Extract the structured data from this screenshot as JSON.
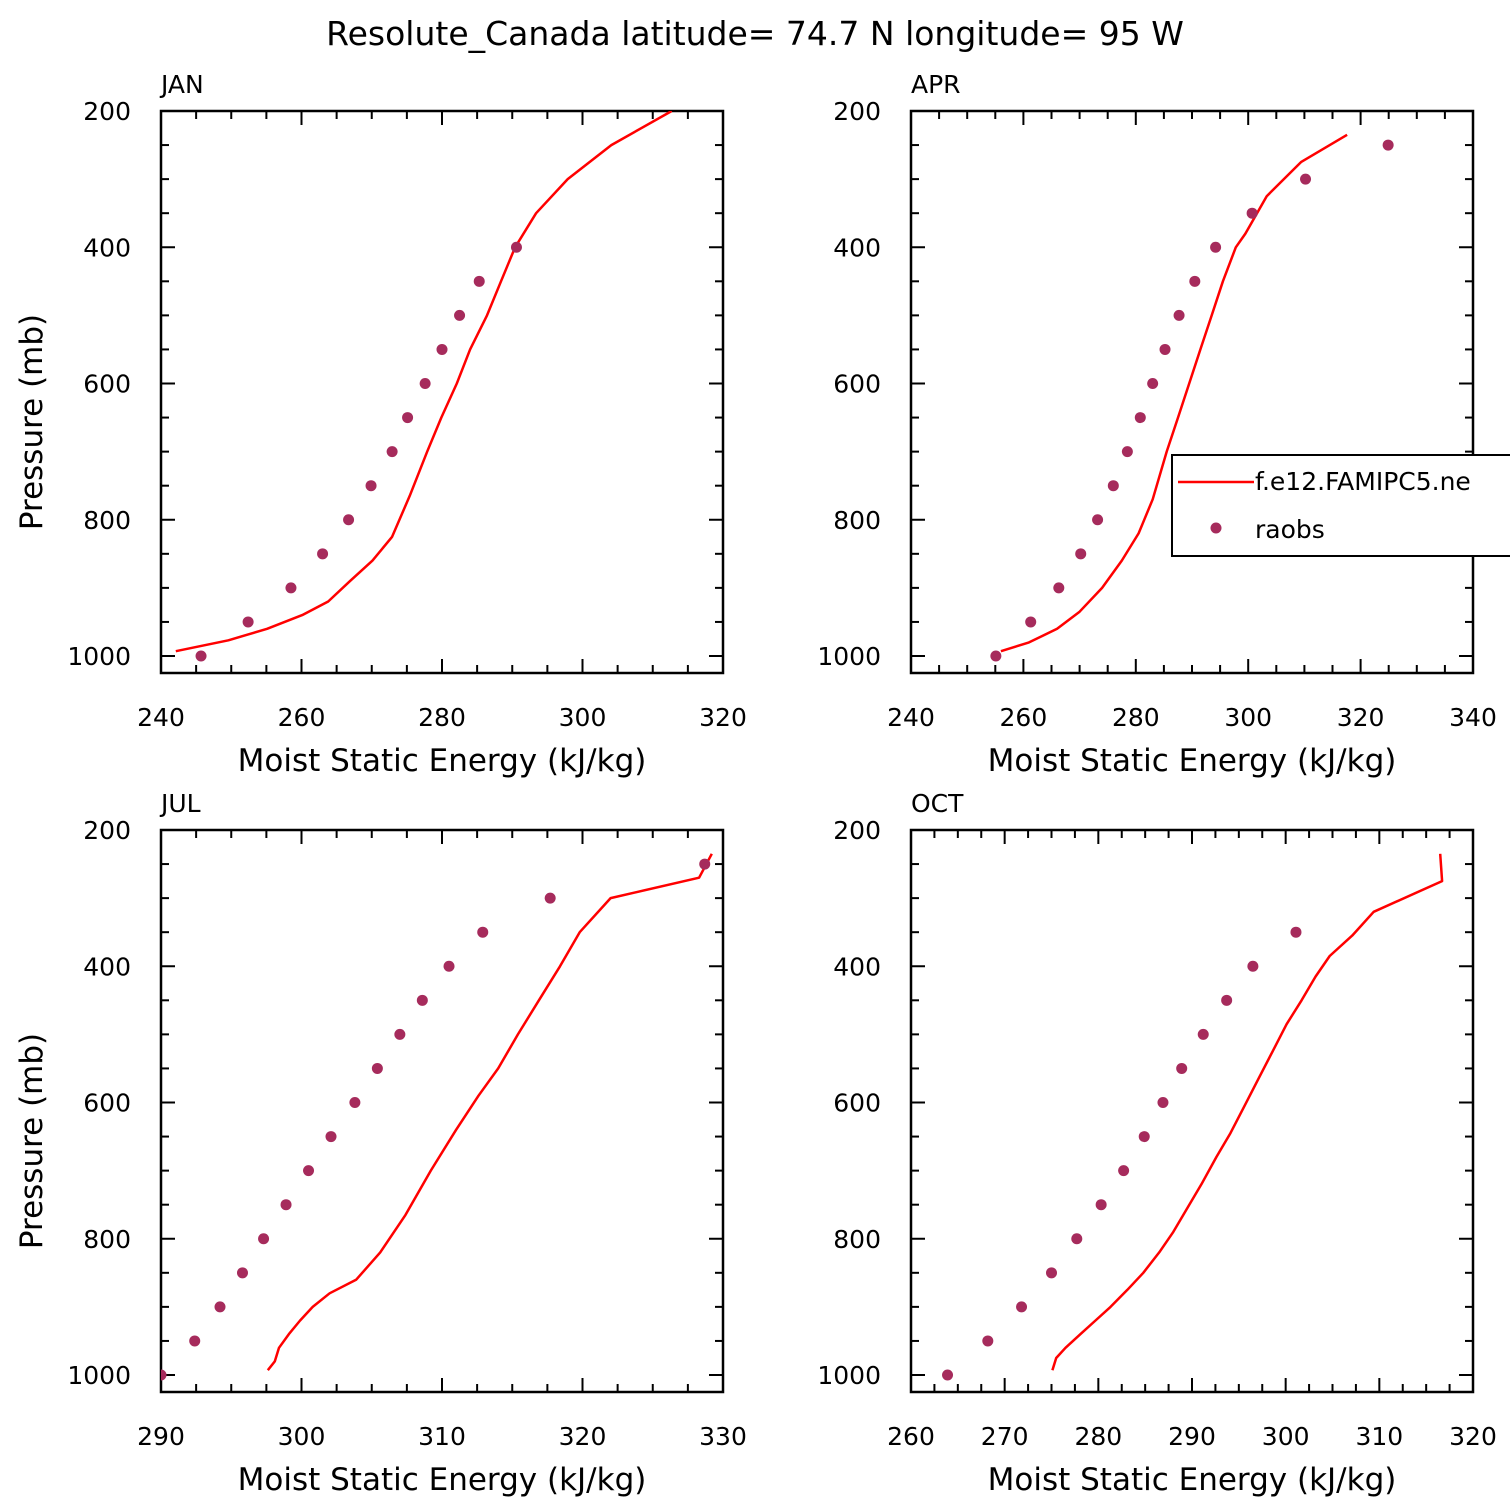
{
  "title": "Resolute_Canada  latitude= 74.7 N longitude= 95 W",
  "colors": {
    "model": "#ff0000",
    "obs": "#a62b5c",
    "axis": "#000000"
  },
  "legend": {
    "model_label": "f.e12.FAMIPC5.ne",
    "obs_label": "raobs",
    "placement": "APR panel, right"
  },
  "chart_data": [
    {
      "type": "line",
      "panel": "JAN",
      "xlabel": "Moist Static Energy (kJ/kg)",
      "ylabel": "Pressure (mb)",
      "xlim": [
        240,
        320
      ],
      "xticks": [
        240,
        260,
        280,
        300,
        320
      ],
      "ylim": [
        1000,
        200
      ],
      "yticks": [
        200,
        400,
        600,
        800,
        1000
      ],
      "series": [
        {
          "name": "f.e12.FAMIPC5.ne",
          "kind": "line",
          "points": [
            [
              242.1,
              993
            ],
            [
              249.6,
              977
            ],
            [
              255.1,
              960
            ],
            [
              260.1,
              940
            ],
            [
              263.8,
              920
            ],
            [
              266.9,
              890
            ],
            [
              270.1,
              860
            ],
            [
              272.9,
              825
            ],
            [
              275.4,
              765
            ],
            [
              277.9,
              700
            ],
            [
              279.9,
              650
            ],
            [
              282.1,
              600
            ],
            [
              284.0,
              550
            ],
            [
              286.4,
              500
            ],
            [
              288.4,
              450
            ],
            [
              290.4,
              400
            ],
            [
              293.4,
              350
            ],
            [
              297.9,
              300
            ],
            [
              304.1,
              250
            ],
            [
              312.7,
              200
            ]
          ]
        },
        {
          "name": "raobs",
          "kind": "points",
          "points": [
            [
              245.7,
              1000
            ],
            [
              252.4,
              950
            ],
            [
              258.5,
              900
            ],
            [
              263.0,
              850
            ],
            [
              266.7,
              800
            ],
            [
              269.9,
              750
            ],
            [
              272.9,
              700
            ],
            [
              275.1,
              650
            ],
            [
              277.6,
              600
            ],
            [
              280.0,
              550
            ],
            [
              282.5,
              500
            ],
            [
              285.3,
              450
            ],
            [
              290.6,
              400
            ]
          ]
        }
      ]
    },
    {
      "type": "line",
      "panel": "APR",
      "xlabel": "Moist Static Energy (kJ/kg)",
      "ylabel": "",
      "xlim": [
        240,
        340
      ],
      "xticks": [
        240,
        260,
        280,
        300,
        320,
        340
      ],
      "ylim": [
        1000,
        200
      ],
      "yticks": [
        200,
        400,
        600,
        800,
        1000
      ],
      "series": [
        {
          "name": "f.e12.FAMIPC5.ne",
          "kind": "line",
          "points": [
            [
              256,
              993
            ],
            [
              261,
              980
            ],
            [
              266,
              960
            ],
            [
              270,
              935
            ],
            [
              274,
              900
            ],
            [
              277.5,
              860
            ],
            [
              280.5,
              820
            ],
            [
              283,
              770
            ],
            [
              285.5,
              700
            ],
            [
              287.5,
              650
            ],
            [
              289.5,
              600
            ],
            [
              291.5,
              550
            ],
            [
              293.5,
              500
            ],
            [
              295.5,
              450
            ],
            [
              297.8,
              400
            ],
            [
              299.5,
              380
            ],
            [
              303.3,
              325
            ],
            [
              309.4,
              275
            ],
            [
              317.6,
              235
            ]
          ]
        },
        {
          "name": "raobs",
          "kind": "points",
          "points": [
            [
              255.1,
              1000
            ],
            [
              261.3,
              950
            ],
            [
              266.3,
              900
            ],
            [
              270.2,
              850
            ],
            [
              273.2,
              800
            ],
            [
              276,
              750
            ],
            [
              278.5,
              700
            ],
            [
              280.8,
              650
            ],
            [
              283,
              600
            ],
            [
              285.2,
              550
            ],
            [
              287.7,
              500
            ],
            [
              290.5,
              450
            ],
            [
              294.2,
              400
            ],
            [
              300.7,
              350
            ],
            [
              310.2,
              300
            ],
            [
              324.9,
              250
            ]
          ]
        }
      ]
    },
    {
      "type": "line",
      "panel": "JUL",
      "xlabel": "Moist Static Energy (kJ/kg)",
      "ylabel": "Pressure (mb)",
      "xlim": [
        290,
        330
      ],
      "xticks": [
        290,
        300,
        310,
        320,
        330
      ],
      "ylim": [
        1000,
        200
      ],
      "yticks": [
        200,
        400,
        600,
        800,
        1000
      ],
      "series": [
        {
          "name": "f.e12.FAMIPC5.ne",
          "kind": "line",
          "points": [
            [
              297.6,
              993
            ],
            [
              298.1,
              980
            ],
            [
              298.4,
              960
            ],
            [
              299.1,
              940
            ],
            [
              299.9,
              920
            ],
            [
              300.8,
              900
            ],
            [
              302.0,
              880
            ],
            [
              303.9,
              860
            ],
            [
              305.6,
              820
            ],
            [
              307.4,
              765
            ],
            [
              309.2,
              700
            ],
            [
              311.0,
              640
            ],
            [
              312.6,
              590
            ],
            [
              314.0,
              550
            ],
            [
              315.4,
              500
            ],
            [
              316.9,
              450
            ],
            [
              318.4,
              400
            ],
            [
              319.8,
              350
            ],
            [
              322.0,
              300
            ],
            [
              328.3,
              270
            ],
            [
              329.2,
              235
            ]
          ]
        },
        {
          "name": "raobs",
          "kind": "points",
          "points": [
            [
              290.0,
              1000
            ],
            [
              292.4,
              950
            ],
            [
              294.2,
              900
            ],
            [
              295.8,
              850
            ],
            [
              297.3,
              800
            ],
            [
              298.9,
              750
            ],
            [
              300.5,
              700
            ],
            [
              302.1,
              650
            ],
            [
              303.8,
              600
            ],
            [
              305.4,
              550
            ],
            [
              307.0,
              500
            ],
            [
              308.6,
              450
            ],
            [
              310.5,
              400
            ],
            [
              312.9,
              350
            ],
            [
              317.7,
              300
            ],
            [
              328.7,
              250
            ]
          ]
        }
      ]
    },
    {
      "type": "line",
      "panel": "OCT",
      "xlabel": "Moist Static Energy (kJ/kg)",
      "ylabel": "",
      "xlim": [
        260,
        320
      ],
      "xticks": [
        260,
        270,
        280,
        290,
        300,
        310,
        320
      ],
      "ylim": [
        1000,
        200
      ],
      "yticks": [
        200,
        400,
        600,
        800,
        1000
      ],
      "series": [
        {
          "name": "f.e12.FAMIPC5.ne",
          "kind": "line",
          "points": [
            [
              275.1,
              993
            ],
            [
              275.5,
              975
            ],
            [
              276.5,
              960
            ],
            [
              278.1,
              940
            ],
            [
              279.7,
              920
            ],
            [
              281.3,
              900
            ],
            [
              283.1,
              875
            ],
            [
              284.8,
              850
            ],
            [
              286.5,
              820
            ],
            [
              288.0,
              790
            ],
            [
              289.5,
              755
            ],
            [
              291.0,
              720
            ],
            [
              292.6,
              680
            ],
            [
              294.1,
              645
            ],
            [
              295.6,
              605
            ],
            [
              297.1,
              565
            ],
            [
              298.6,
              525
            ],
            [
              300.1,
              485
            ],
            [
              301.7,
              450
            ],
            [
              303.2,
              415
            ],
            [
              304.7,
              385
            ],
            [
              307.1,
              355
            ],
            [
              309.4,
              320
            ],
            [
              316.7,
              275
            ],
            [
              316.5,
              235
            ]
          ]
        },
        {
          "name": "raobs",
          "kind": "points",
          "points": [
            [
              263.9,
              1000
            ],
            [
              268.2,
              950
            ],
            [
              271.8,
              900
            ],
            [
              275.0,
              850
            ],
            [
              277.7,
              800
            ],
            [
              280.3,
              750
            ],
            [
              282.7,
              700
            ],
            [
              284.9,
              650
            ],
            [
              286.9,
              600
            ],
            [
              288.9,
              550
            ],
            [
              291.2,
              500
            ],
            [
              293.7,
              450
            ],
            [
              296.5,
              400
            ],
            [
              301.1,
              350
            ]
          ]
        }
      ]
    }
  ]
}
